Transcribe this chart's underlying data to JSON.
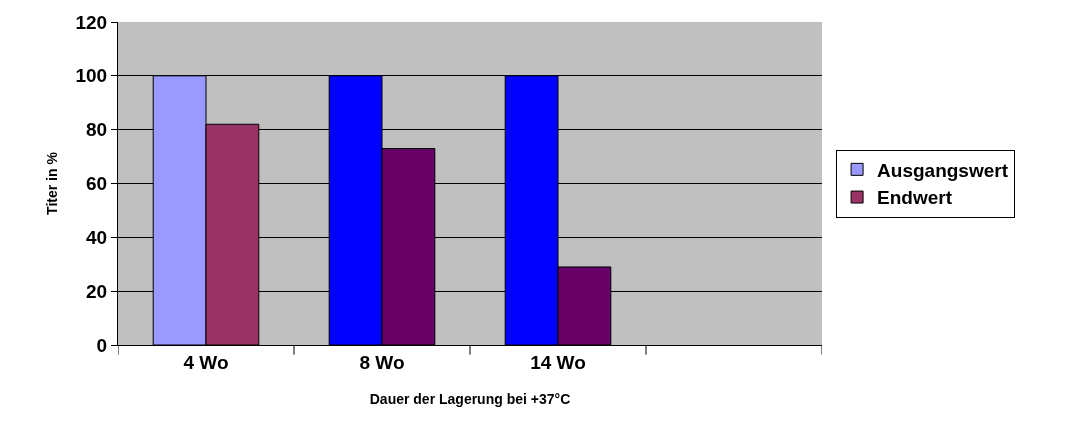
{
  "chart_data": {
    "type": "bar",
    "xlabel": "Dauer der Lagerung bei +37°C",
    "ylabel": "Titer in %",
    "categories": [
      "4 Wo",
      "8 Wo",
      "14 Wo",
      null
    ],
    "series": [
      {
        "name": "Ausgangswert",
        "colors": [
          "#9999ff",
          "#0000ff",
          "#0000ff",
          null
        ],
        "values": [
          100,
          100,
          100,
          null
        ]
      },
      {
        "name": "Endwert",
        "colors": [
          "#993366",
          "#660066",
          "#660066",
          null
        ],
        "values": [
          82,
          73,
          29,
          null
        ]
      }
    ],
    "ylim": [
      0,
      120
    ],
    "yticks": [
      0,
      20,
      40,
      60,
      80,
      100,
      120
    ],
    "grid": "y",
    "legend": "right"
  }
}
